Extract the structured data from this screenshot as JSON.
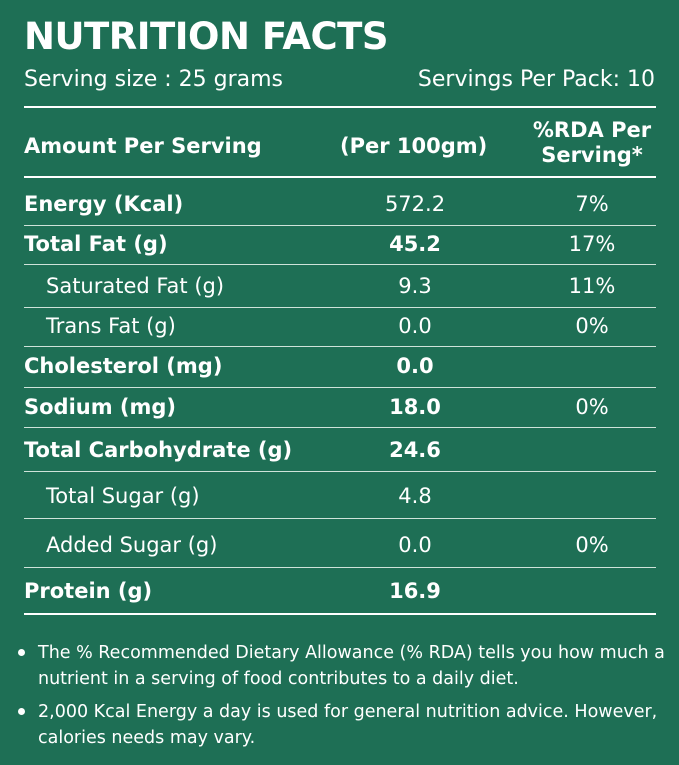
{
  "title": "NUTRITION FACTS",
  "serving_size": "Serving size : 25 grams",
  "servings_per_pack": "Servings Per Pack: 10",
  "header": {
    "col1": "Amount Per Serving",
    "col2": "(Per 100gm)",
    "col3_line1": "%RDA Per",
    "col3_line2": "Serving*"
  },
  "rows": [
    {
      "name": "Energy (Kcal)",
      "value": "572.2",
      "rda": "7%"
    },
    {
      "name": "Total Fat (g)",
      "value": "45.2",
      "rda": "17%"
    },
    {
      "name": "Saturated Fat (g)",
      "value": "9.3",
      "rda": "11%"
    },
    {
      "name": "Trans Fat (g)",
      "value": "0.0",
      "rda": "0%"
    },
    {
      "name": "Cholesterol (mg)",
      "value": "0.0",
      "rda": ""
    },
    {
      "name": "Sodium  (mg)",
      "value": "18.0",
      "rda": "0%"
    },
    {
      "name": "Total Carbohydrate (g)",
      "value": "24.6",
      "rda": ""
    },
    {
      "name": "Total Sugar (g)",
      "value": "4.8",
      "rda": ""
    },
    {
      "name": "Added Sugar (g)",
      "value": "0.0",
      "rda": "0%"
    },
    {
      "name": "Protein (g)",
      "value": "16.9",
      "rda": ""
    }
  ],
  "notes": [
    "The % Recommended Dietary Allowance (% RDA) tells you how much a nutrient in a serving of food contributes to a daily diet.",
    "2,000 Kcal Energy a day is used for general nutrition advice. However, calories needs may vary."
  ],
  "colors": {
    "background": "#1e6f55",
    "text": "#ffffff"
  }
}
